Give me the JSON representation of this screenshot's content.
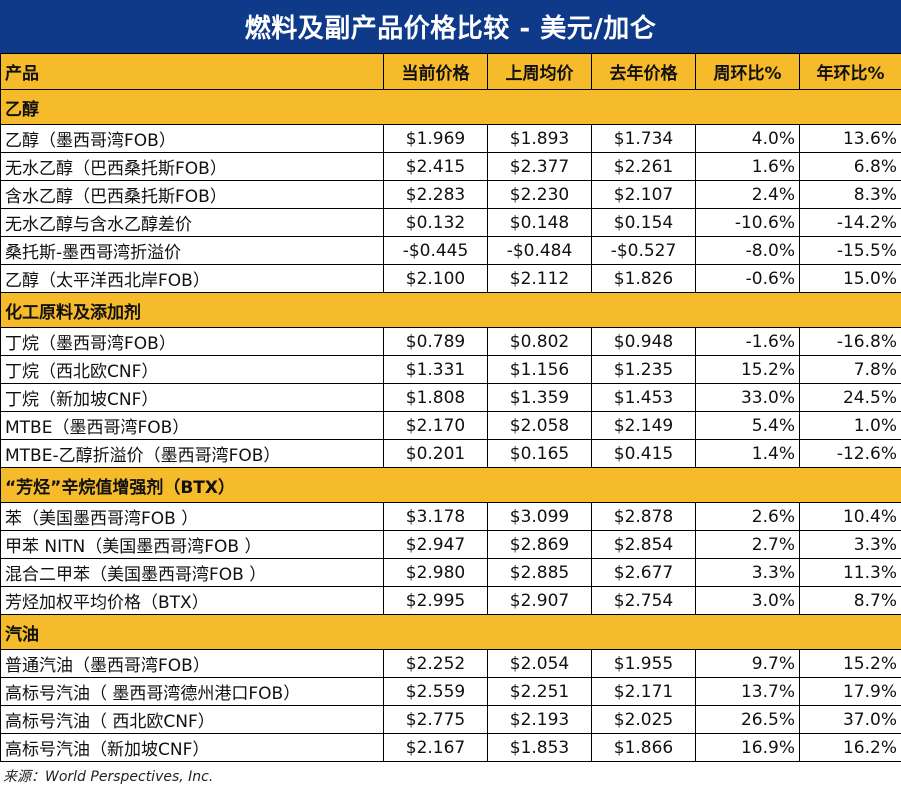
{
  "title": "燃料及副产品价格比较 - 美元/加仑",
  "headers": [
    "产品",
    "当前价格",
    "上周均价",
    "去年价格",
    "周环比%",
    "年环比%"
  ],
  "sections": [
    {
      "name": "乙醇",
      "rows": [
        [
          "乙醇（墨西哥湾FOB）",
          "$1.969",
          "$1.893",
          "$1.734",
          "4.0%",
          "13.6%"
        ],
        [
          "无水乙醇（巴西桑托斯FOB）",
          "$2.415",
          "$2.377",
          "$2.261",
          "1.6%",
          "6.8%"
        ],
        [
          "含水乙醇（巴西桑托斯FOB）",
          "$2.283",
          "$2.230",
          "$2.107",
          "2.4%",
          "8.3%"
        ],
        [
          "无水乙醇与含水乙醇差价",
          "$0.132",
          "$0.148",
          "$0.154",
          "-10.6%",
          "-14.2%"
        ],
        [
          "桑托斯-墨西哥湾折溢价",
          "-$0.445",
          "-$0.484",
          "-$0.527",
          "-8.0%",
          "-15.5%"
        ],
        [
          "乙醇（太平洋西北岸FOB）",
          "$2.100",
          "$2.112",
          "$1.826",
          "-0.6%",
          "15.0%"
        ]
      ]
    },
    {
      "name": "化工原料及添加剂",
      "rows": [
        [
          "丁烷（墨西哥湾FOB）",
          "$0.789",
          "$0.802",
          "$0.948",
          "-1.6%",
          "-16.8%"
        ],
        [
          "丁烷（西北欧CNF）",
          "$1.331",
          "$1.156",
          "$1.235",
          "15.2%",
          "7.8%"
        ],
        [
          "丁烷（新加坡CNF）",
          "$1.808",
          "$1.359",
          "$1.453",
          "33.0%",
          "24.5%"
        ],
        [
          "MTBE（墨西哥湾FOB）",
          "$2.170",
          "$2.058",
          "$2.149",
          "5.4%",
          "1.0%"
        ],
        [
          "MTBE-乙醇折溢价（墨西哥湾FOB）",
          "$0.201",
          "$0.165",
          "$0.415",
          "1.4%",
          "-12.6%"
        ]
      ]
    },
    {
      "name": "“芳烃”辛烷值增强剂（BTX）",
      "rows": [
        [
          "苯（美国墨西哥湾FOB ）",
          "$3.178",
          "$3.099",
          "$2.878",
          "2.6%",
          "10.4%"
        ],
        [
          "甲苯 NITN（美国墨西哥湾FOB ）",
          "$2.947",
          "$2.869",
          "$2.854",
          "2.7%",
          "3.3%"
        ],
        [
          "混合二甲苯（美国墨西哥湾FOB ）",
          "$2.980",
          "$2.885",
          "$2.677",
          "3.3%",
          "11.3%"
        ],
        [
          "芳烃加权平均价格（BTX）",
          "$2.995",
          "$2.907",
          "$2.754",
          "3.0%",
          "8.7%"
        ]
      ]
    },
    {
      "name": "汽油",
      "rows": [
        [
          "普通汽油（墨西哥湾FOB）",
          "$2.252",
          "$2.054",
          "$1.955",
          "9.7%",
          "15.2%"
        ],
        [
          "高标号汽油（ 墨西哥湾德州港口FOB）",
          "$2.559",
          "$2.251",
          "$2.171",
          "13.7%",
          "17.9%"
        ],
        [
          "高标号汽油（ 西北欧CNF）",
          "$2.775",
          "$2.193",
          "$2.025",
          "26.5%",
          "37.0%"
        ],
        [
          "高标号汽油（新加坡CNF）",
          "$2.167",
          "$1.853",
          "$1.866",
          "16.9%",
          "16.2%"
        ]
      ]
    }
  ],
  "source": "来源：World Perspectives, Inc.",
  "colors": {
    "title_bg": "#0f3a8a",
    "header_bg": "#f5bb2a"
  }
}
